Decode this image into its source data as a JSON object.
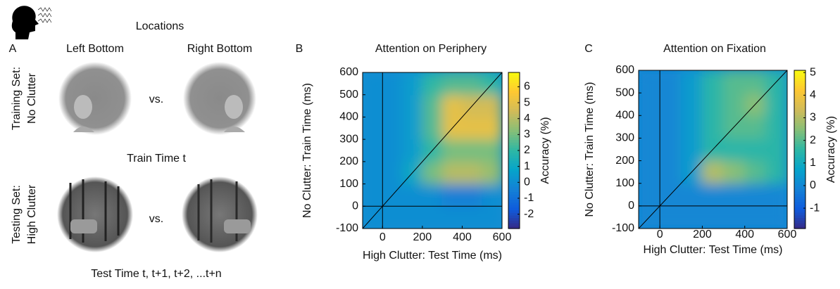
{
  "panel_a": {
    "label": "A",
    "title": "Locations",
    "column_labels": [
      "Left Bottom",
      "Right Bottom"
    ],
    "row_labels": [
      [
        "Training Set:",
        "No Clutter"
      ],
      [
        "Testing Set:",
        "High Clutter"
      ]
    ],
    "versus": [
      "vs.",
      "vs."
    ],
    "middle_caption": "Train Time t",
    "bottom_caption": "Test Time t, t+1, t+2, ...t+n"
  },
  "chart_data": [
    {
      "type": "heatmap",
      "label": "B",
      "title": "Attention on Periphery",
      "x_label": "High Clutter: Test Time (ms)",
      "y_label": "No Clutter: Train Time (ms)",
      "colorbar_label": "Accuracy (%)",
      "xlim": [
        -100,
        600
      ],
      "ylim": [
        -100,
        600
      ],
      "xticks": [
        0,
        200,
        400,
        600
      ],
      "yticks": [
        -100,
        0,
        100,
        200,
        300,
        400,
        500,
        600
      ],
      "clim": [
        -2.9,
        6.9
      ],
      "cticks": [
        -2,
        -1,
        0,
        1,
        2,
        3,
        4,
        5,
        6
      ],
      "x": [
        -100,
        0,
        100,
        200,
        300,
        400,
        500,
        600
      ],
      "y": [
        -100,
        0,
        100,
        200,
        300,
        400,
        500,
        600
      ],
      "z": [
        [
          0,
          0,
          0,
          0,
          0,
          0,
          0
        ],
        [
          0,
          0,
          0,
          0,
          -0.5,
          -0.5,
          0
        ],
        [
          0,
          0,
          1,
          3,
          4,
          4,
          3.5
        ],
        [
          0,
          0,
          0.5,
          2,
          3,
          3,
          3
        ],
        [
          0,
          0,
          0.5,
          2.5,
          5,
          5,
          5
        ],
        [
          0,
          0,
          0.5,
          2.5,
          5,
          4.5,
          4.5
        ],
        [
          0,
          0,
          0.5,
          2,
          2.5,
          2.5,
          2
        ]
      ]
    },
    {
      "type": "heatmap",
      "label": "C",
      "title": "Attention on Fixation",
      "x_label": "High Clutter: Test Time (ms)",
      "y_label": "No Clutter: Train Time (ms)",
      "colorbar_label": "Accuracy (%)",
      "xlim": [
        -100,
        600
      ],
      "ylim": [
        -100,
        600
      ],
      "xticks": [
        0,
        200,
        400,
        600
      ],
      "yticks": [
        -100,
        0,
        100,
        200,
        300,
        400,
        500,
        600
      ],
      "clim": [
        -1.9,
        5.1
      ],
      "cticks": [
        -1,
        0,
        1,
        2,
        3,
        4,
        5
      ],
      "x": [
        -100,
        0,
        100,
        200,
        300,
        400,
        500,
        600
      ],
      "y": [
        -100,
        0,
        100,
        200,
        300,
        400,
        500,
        600
      ],
      "z": [
        [
          0,
          0,
          0,
          0,
          0,
          0,
          0
        ],
        [
          0,
          0,
          0,
          0,
          0,
          0,
          0
        ],
        [
          0,
          0,
          0.5,
          3,
          2.5,
          2,
          1.5
        ],
        [
          0,
          0,
          0.5,
          1.5,
          1.5,
          1.5,
          1.5
        ],
        [
          0,
          0,
          0.5,
          1.5,
          2,
          2,
          1.5
        ],
        [
          0,
          0,
          0.5,
          1.5,
          2,
          2.5,
          1.5
        ],
        [
          0,
          0,
          0.5,
          1.5,
          2,
          2,
          1.5
        ]
      ]
    }
  ]
}
